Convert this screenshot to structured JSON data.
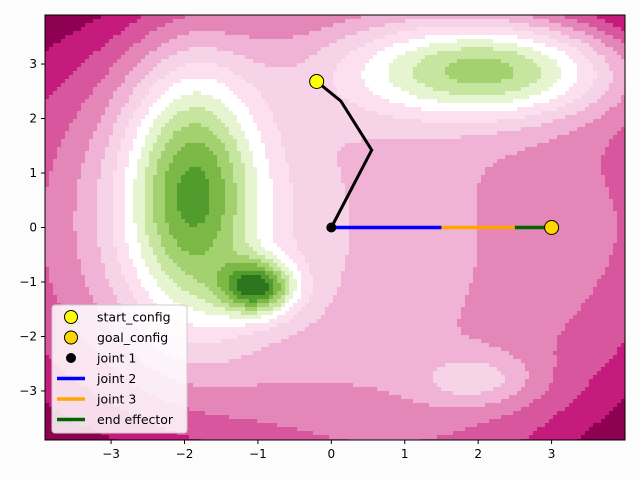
{
  "chart_data": {
    "type": "contour",
    "title": "",
    "xlabel": "",
    "ylabel": "",
    "xlim": [
      -3.9,
      4.0
    ],
    "ylim": [
      -3.9,
      3.9
    ],
    "xticks": [
      -3,
      -2,
      -1,
      0,
      1,
      2,
      3
    ],
    "yticks": [
      -3,
      -2,
      -1,
      0,
      1,
      2,
      3
    ],
    "grid": false,
    "legend_position": "lower-left",
    "colormap": "PiYG",
    "field_features": [
      {
        "kind": "valley",
        "center": [
          -1.9,
          0.7
        ],
        "extent": [
          0.9,
          2.4
        ],
        "depth": "deep"
      },
      {
        "kind": "valley",
        "center": [
          -1.0,
          -1.1
        ],
        "extent": [
          0.5,
          0.5
        ],
        "depth": "deep"
      },
      {
        "kind": "valley",
        "center": [
          2.2,
          2.9
        ],
        "extent": [
          1.9,
          0.9
        ],
        "depth": "deep"
      },
      {
        "kind": "shallow",
        "center": [
          2.0,
          -2.8
        ],
        "extent": [
          0.8,
          0.5
        ],
        "depth": "shallow"
      }
    ],
    "series": [
      {
        "name": "start_config",
        "kind": "marker",
        "color": "#ffff00",
        "edge": "#000000",
        "points": [
          [
            -0.2,
            2.68
          ]
        ]
      },
      {
        "name": "goal_config",
        "kind": "marker",
        "color": "#ffd700",
        "edge": "#000000",
        "points": [
          [
            3.0,
            0.0
          ]
        ]
      },
      {
        "name": "joint 1",
        "kind": "marker",
        "color": "#000000",
        "points": [
          [
            0.0,
            0.0
          ]
        ]
      },
      {
        "name": "joint 2",
        "kind": "line",
        "color": "#0000ff",
        "points": [
          [
            0.0,
            0.0
          ],
          [
            1.5,
            0.0
          ]
        ]
      },
      {
        "name": "joint 3",
        "kind": "line",
        "color": "#ffa500",
        "points": [
          [
            1.5,
            0.0
          ],
          [
            2.5,
            0.0
          ]
        ]
      },
      {
        "name": "end effector",
        "kind": "line",
        "color": "#006400",
        "points": [
          [
            2.5,
            0.0
          ],
          [
            3.0,
            0.0
          ]
        ]
      }
    ],
    "start_pose": {
      "color": "#000000",
      "points": [
        [
          0.0,
          0.0
        ],
        [
          0.55,
          1.42
        ],
        [
          0.13,
          2.32
        ],
        [
          -0.2,
          2.68
        ]
      ]
    }
  }
}
